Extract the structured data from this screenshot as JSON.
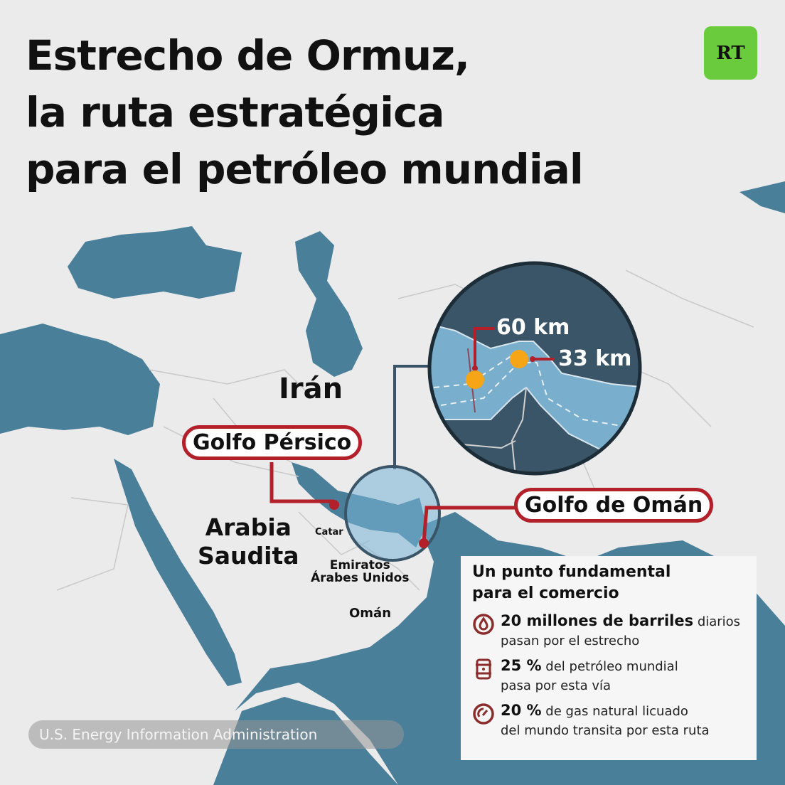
{
  "title": {
    "lines": [
      "Estrecho de Ormuz,",
      "la ruta estratégica",
      "para el petróleo mundial"
    ]
  },
  "logo": {
    "text": "RT",
    "color": "#6acb3c"
  },
  "map": {
    "countries": {
      "iran": "Irán",
      "saudi": [
        "Arabia",
        "Saudita"
      ],
      "qatar": "Catar",
      "uae": [
        "Emiratos",
        "Árabes Unidos"
      ],
      "oman": "Omán"
    },
    "callouts": {
      "persian_gulf": "Golfo Pérsico",
      "gulf_of_oman": "Golfo de Omán"
    },
    "inset": {
      "width_west": "60 km",
      "width_east": "33 km"
    },
    "colors": {
      "sea": "#4a7f99",
      "land": "#ebebeb",
      "accent": "#b3202a",
      "inset_land": "#3a5567",
      "inset_sea": "#79afcc",
      "marker": "#f5a515"
    }
  },
  "info_box": {
    "heading": [
      "Un punto fundamental",
      "para el comercio"
    ],
    "items": [
      {
        "icon": "oil-drop-icon",
        "bold": "20 millones de barriles",
        "text1": " diarios",
        "text2": "pasan por el estrecho"
      },
      {
        "icon": "oil-barrel-icon",
        "bold": "25 %",
        "text1": " del petróleo mundial",
        "text2": "pasa por esta vía"
      },
      {
        "icon": "gauge-icon",
        "bold": "20 %",
        "text1": " de gas natural licuado",
        "text2": "del mundo transita por esta ruta"
      }
    ]
  },
  "source": "U.S. Energy Information Administration"
}
